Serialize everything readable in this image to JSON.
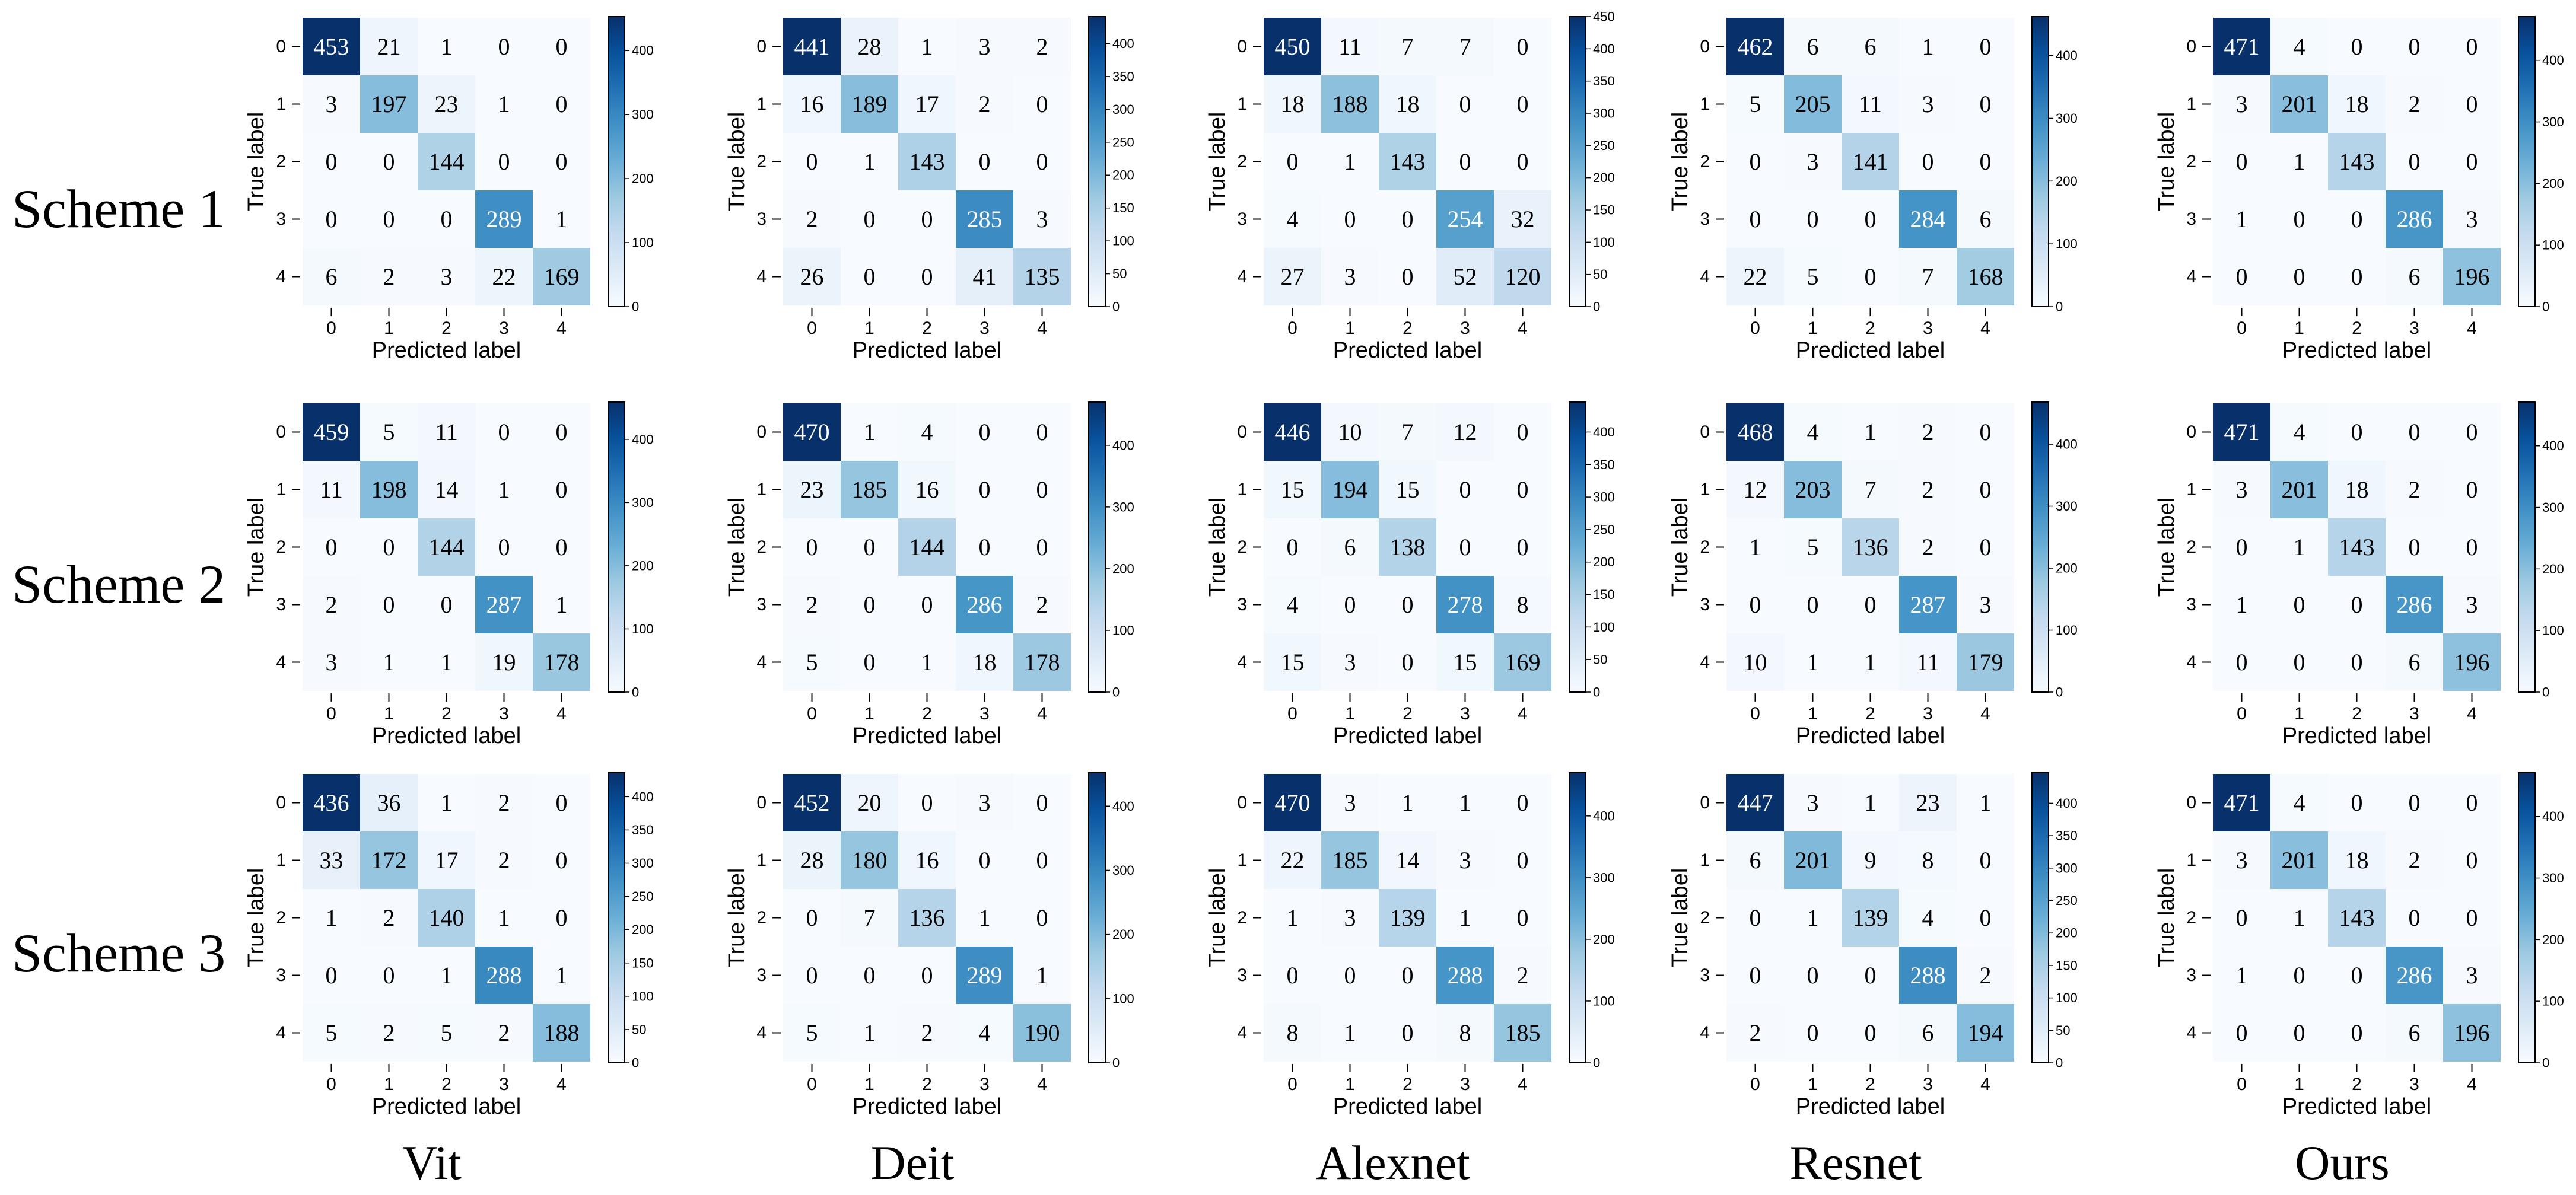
{
  "figure": {
    "row_titles": [
      "Scheme 1",
      "Scheme 2",
      "Scheme 3"
    ],
    "col_titles": [
      "Vit",
      "Deit",
      "Alexnet",
      "Resnet",
      "Ours"
    ]
  },
  "colors": {
    "low": "#f7fbff",
    "high": "#08306b",
    "dark_text": "#ffffff",
    "light_text": "#000000"
  },
  "chart_data": [
    {
      "type": "heatmap",
      "row": 0,
      "col": 0,
      "scheme": "Scheme 1",
      "model": "Vit",
      "xlabel": "Predicted label",
      "ylabel": "True label",
      "labels": [
        "0",
        "1",
        "2",
        "3",
        "4"
      ],
      "matrix": [
        [
          453,
          21,
          1,
          0,
          0
        ],
        [
          3,
          197,
          23,
          1,
          0
        ],
        [
          0,
          0,
          144,
          0,
          0
        ],
        [
          0,
          0,
          0,
          289,
          1
        ],
        [
          6,
          2,
          3,
          22,
          169
        ]
      ],
      "colorbar_ticks": [
        0,
        100,
        200,
        300,
        400
      ],
      "colorbar_range": [
        0,
        453
      ]
    },
    {
      "type": "heatmap",
      "row": 0,
      "col": 1,
      "scheme": "Scheme 1",
      "model": "Deit",
      "xlabel": "Predicted label",
      "ylabel": "True label",
      "labels": [
        "0",
        "1",
        "2",
        "3",
        "4"
      ],
      "matrix": [
        [
          441,
          28,
          1,
          3,
          2
        ],
        [
          16,
          189,
          17,
          2,
          0
        ],
        [
          0,
          1,
          143,
          0,
          0
        ],
        [
          2,
          0,
          0,
          285,
          3
        ],
        [
          26,
          0,
          0,
          41,
          135
        ]
      ],
      "colorbar_ticks": [
        0,
        50,
        100,
        150,
        200,
        250,
        300,
        350,
        400
      ],
      "colorbar_range": [
        0,
        441
      ]
    },
    {
      "type": "heatmap",
      "row": 0,
      "col": 2,
      "scheme": "Scheme 1",
      "model": "Alexnet",
      "xlabel": "Predicted label",
      "ylabel": "True label",
      "labels": [
        "0",
        "1",
        "2",
        "3",
        "4"
      ],
      "matrix": [
        [
          450,
          11,
          7,
          7,
          0
        ],
        [
          18,
          188,
          18,
          0,
          0
        ],
        [
          0,
          1,
          143,
          0,
          0
        ],
        [
          4,
          0,
          0,
          254,
          32
        ],
        [
          27,
          3,
          0,
          52,
          120
        ]
      ],
      "colorbar_ticks": [
        0,
        50,
        100,
        150,
        200,
        250,
        300,
        350,
        400,
        450
      ],
      "colorbar_range": [
        0,
        450
      ]
    },
    {
      "type": "heatmap",
      "row": 0,
      "col": 3,
      "scheme": "Scheme 1",
      "model": "Resnet",
      "xlabel": "Predicted label",
      "ylabel": "True label",
      "labels": [
        "0",
        "1",
        "2",
        "3",
        "4"
      ],
      "matrix": [
        [
          462,
          6,
          6,
          1,
          0
        ],
        [
          5,
          205,
          11,
          3,
          0
        ],
        [
          0,
          3,
          141,
          0,
          0
        ],
        [
          0,
          0,
          0,
          284,
          6
        ],
        [
          22,
          5,
          0,
          7,
          168
        ]
      ],
      "colorbar_ticks": [
        0,
        100,
        200,
        300,
        400
      ],
      "colorbar_range": [
        0,
        462
      ]
    },
    {
      "type": "heatmap",
      "row": 0,
      "col": 4,
      "scheme": "Scheme 1",
      "model": "Ours",
      "xlabel": "Predicted label",
      "ylabel": "True label",
      "labels": [
        "0",
        "1",
        "2",
        "3",
        "4"
      ],
      "matrix": [
        [
          471,
          4,
          0,
          0,
          0
        ],
        [
          3,
          201,
          18,
          2,
          0
        ],
        [
          0,
          1,
          143,
          0,
          0
        ],
        [
          1,
          0,
          0,
          286,
          3
        ],
        [
          0,
          0,
          0,
          6,
          196
        ]
      ],
      "colorbar_ticks": [
        0,
        100,
        200,
        300,
        400
      ],
      "colorbar_range": [
        0,
        471
      ]
    },
    {
      "type": "heatmap",
      "row": 1,
      "col": 0,
      "scheme": "Scheme 2",
      "model": "Vit",
      "xlabel": "Predicted label",
      "ylabel": "True label",
      "labels": [
        "0",
        "1",
        "2",
        "3",
        "4"
      ],
      "matrix": [
        [
          459,
          5,
          11,
          0,
          0
        ],
        [
          11,
          198,
          14,
          1,
          0
        ],
        [
          0,
          0,
          144,
          0,
          0
        ],
        [
          2,
          0,
          0,
          287,
          1
        ],
        [
          3,
          1,
          1,
          19,
          178
        ]
      ],
      "colorbar_ticks": [
        0,
        100,
        200,
        300,
        400
      ],
      "colorbar_range": [
        0,
        459
      ]
    },
    {
      "type": "heatmap",
      "row": 1,
      "col": 1,
      "scheme": "Scheme 2",
      "model": "Deit",
      "xlabel": "Predicted label",
      "ylabel": "True label",
      "labels": [
        "0",
        "1",
        "2",
        "3",
        "4"
      ],
      "matrix": [
        [
          470,
          1,
          4,
          0,
          0
        ],
        [
          23,
          185,
          16,
          0,
          0
        ],
        [
          0,
          0,
          144,
          0,
          0
        ],
        [
          2,
          0,
          0,
          286,
          2
        ],
        [
          5,
          0,
          1,
          18,
          178
        ]
      ],
      "colorbar_ticks": [
        0,
        100,
        200,
        300,
        400
      ],
      "colorbar_range": [
        0,
        470
      ]
    },
    {
      "type": "heatmap",
      "row": 1,
      "col": 2,
      "scheme": "Scheme 2",
      "model": "Alexnet",
      "xlabel": "Predicted label",
      "ylabel": "True label",
      "labels": [
        "0",
        "1",
        "2",
        "3",
        "4"
      ],
      "matrix": [
        [
          446,
          10,
          7,
          12,
          0
        ],
        [
          15,
          194,
          15,
          0,
          0
        ],
        [
          0,
          6,
          138,
          0,
          0
        ],
        [
          4,
          0,
          0,
          278,
          8
        ],
        [
          15,
          3,
          0,
          15,
          169
        ]
      ],
      "colorbar_ticks": [
        0,
        50,
        100,
        150,
        200,
        250,
        300,
        350,
        400
      ],
      "colorbar_range": [
        0,
        446
      ]
    },
    {
      "type": "heatmap",
      "row": 1,
      "col": 3,
      "scheme": "Scheme 2",
      "model": "Resnet",
      "xlabel": "Predicted label",
      "ylabel": "True label",
      "labels": [
        "0",
        "1",
        "2",
        "3",
        "4"
      ],
      "matrix": [
        [
          468,
          4,
          1,
          2,
          0
        ],
        [
          12,
          203,
          7,
          2,
          0
        ],
        [
          1,
          5,
          136,
          2,
          0
        ],
        [
          0,
          0,
          0,
          287,
          3
        ],
        [
          10,
          1,
          1,
          11,
          179
        ]
      ],
      "colorbar_ticks": [
        0,
        100,
        200,
        300,
        400
      ],
      "colorbar_range": [
        0,
        468
      ]
    },
    {
      "type": "heatmap",
      "row": 1,
      "col": 4,
      "scheme": "Scheme 2",
      "model": "Ours",
      "xlabel": "Predicted label",
      "ylabel": "True label",
      "labels": [
        "0",
        "1",
        "2",
        "3",
        "4"
      ],
      "matrix": [
        [
          471,
          4,
          0,
          0,
          0
        ],
        [
          3,
          201,
          18,
          2,
          0
        ],
        [
          0,
          1,
          143,
          0,
          0
        ],
        [
          1,
          0,
          0,
          286,
          3
        ],
        [
          0,
          0,
          0,
          6,
          196
        ]
      ],
      "colorbar_ticks": [
        0,
        100,
        200,
        300,
        400
      ],
      "colorbar_range": [
        0,
        471
      ]
    },
    {
      "type": "heatmap",
      "row": 2,
      "col": 0,
      "scheme": "Scheme 3",
      "model": "Vit",
      "xlabel": "Predicted label",
      "ylabel": "True label",
      "labels": [
        "0",
        "1",
        "2",
        "3",
        "4"
      ],
      "matrix": [
        [
          436,
          36,
          1,
          2,
          0
        ],
        [
          33,
          172,
          17,
          2,
          0
        ],
        [
          1,
          2,
          140,
          1,
          0
        ],
        [
          0,
          0,
          1,
          288,
          1
        ],
        [
          5,
          2,
          5,
          2,
          188
        ]
      ],
      "colorbar_ticks": [
        0,
        50,
        100,
        150,
        200,
        250,
        300,
        350,
        400
      ],
      "colorbar_range": [
        0,
        436
      ]
    },
    {
      "type": "heatmap",
      "row": 2,
      "col": 1,
      "scheme": "Scheme 3",
      "model": "Deit",
      "xlabel": "Predicted label",
      "ylabel": "True label",
      "labels": [
        "0",
        "1",
        "2",
        "3",
        "4"
      ],
      "matrix": [
        [
          452,
          20,
          0,
          3,
          0
        ],
        [
          28,
          180,
          16,
          0,
          0
        ],
        [
          0,
          7,
          136,
          1,
          0
        ],
        [
          0,
          0,
          0,
          289,
          1
        ],
        [
          5,
          1,
          2,
          4,
          190
        ]
      ],
      "colorbar_ticks": [
        0,
        100,
        200,
        300,
        400
      ],
      "colorbar_range": [
        0,
        452
      ]
    },
    {
      "type": "heatmap",
      "row": 2,
      "col": 2,
      "scheme": "Scheme 3",
      "model": "Alexnet",
      "xlabel": "Predicted label",
      "ylabel": "True label",
      "labels": [
        "0",
        "1",
        "2",
        "3",
        "4"
      ],
      "matrix": [
        [
          470,
          3,
          1,
          1,
          0
        ],
        [
          22,
          185,
          14,
          3,
          0
        ],
        [
          1,
          3,
          139,
          1,
          0
        ],
        [
          0,
          0,
          0,
          288,
          2
        ],
        [
          8,
          1,
          0,
          8,
          185
        ]
      ],
      "colorbar_ticks": [
        0,
        100,
        200,
        300,
        400
      ],
      "colorbar_range": [
        0,
        470
      ]
    },
    {
      "type": "heatmap",
      "row": 2,
      "col": 3,
      "scheme": "Scheme 3",
      "model": "Resnet",
      "xlabel": "Predicted label",
      "ylabel": "True label",
      "labels": [
        "0",
        "1",
        "2",
        "3",
        "4"
      ],
      "matrix": [
        [
          447,
          3,
          1,
          23,
          1
        ],
        [
          6,
          201,
          9,
          8,
          0
        ],
        [
          0,
          1,
          139,
          4,
          0
        ],
        [
          0,
          0,
          0,
          288,
          2
        ],
        [
          2,
          0,
          0,
          6,
          194
        ]
      ],
      "colorbar_ticks": [
        0,
        50,
        100,
        150,
        200,
        250,
        300,
        350,
        400
      ],
      "colorbar_range": [
        0,
        447
      ]
    },
    {
      "type": "heatmap",
      "row": 2,
      "col": 4,
      "scheme": "Scheme 3",
      "model": "Ours",
      "xlabel": "Predicted label",
      "ylabel": "True label",
      "labels": [
        "0",
        "1",
        "2",
        "3",
        "4"
      ],
      "matrix": [
        [
          471,
          4,
          0,
          0,
          0
        ],
        [
          3,
          201,
          18,
          2,
          0
        ],
        [
          0,
          1,
          143,
          0,
          0
        ],
        [
          1,
          0,
          0,
          286,
          3
        ],
        [
          0,
          0,
          0,
          6,
          196
        ]
      ],
      "colorbar_ticks": [
        0,
        100,
        200,
        300,
        400
      ],
      "colorbar_range": [
        0,
        471
      ]
    }
  ]
}
